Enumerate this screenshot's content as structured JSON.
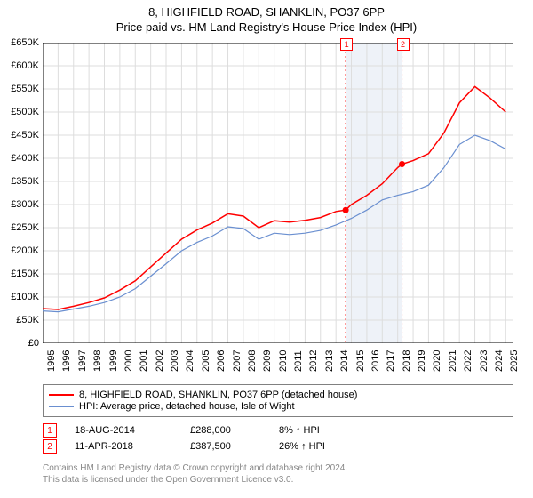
{
  "title": {
    "main": "8, HIGHFIELD ROAD, SHANKLIN, PO37 6PP",
    "sub": "Price paid vs. HM Land Registry's House Price Index (HPI)"
  },
  "chart": {
    "type": "line",
    "background_color": "#ffffff",
    "grid_color": "#dddddd",
    "axis_color": "#000000",
    "shaded_band": {
      "x_start": 2014.63,
      "x_end": 2018.28,
      "color": "#eef2f8"
    },
    "x": {
      "min": 1995,
      "max": 2025.5,
      "ticks": [
        1995,
        1996,
        1997,
        1998,
        1999,
        2000,
        2001,
        2002,
        2003,
        2004,
        2005,
        2006,
        2007,
        2008,
        2009,
        2010,
        2011,
        2012,
        2013,
        2014,
        2015,
        2016,
        2017,
        2018,
        2019,
        2020,
        2021,
        2022,
        2023,
        2024,
        2025
      ]
    },
    "y": {
      "min": 0,
      "max": 650000,
      "ticks": [
        0,
        50000,
        100000,
        150000,
        200000,
        250000,
        300000,
        350000,
        400000,
        450000,
        500000,
        550000,
        600000,
        650000
      ],
      "tick_labels": [
        "£0",
        "£50K",
        "£100K",
        "£150K",
        "£200K",
        "£250K",
        "£300K",
        "£350K",
        "£400K",
        "£450K",
        "£500K",
        "£550K",
        "£600K",
        "£650K"
      ]
    },
    "series": [
      {
        "name": "8, HIGHFIELD ROAD, SHANKLIN, PO37 6PP (detached house)",
        "color": "#ff0000",
        "line_width": 1.5,
        "points": [
          [
            1995,
            75000
          ],
          [
            1996,
            73000
          ],
          [
            1997,
            80000
          ],
          [
            1998,
            88000
          ],
          [
            1999,
            98000
          ],
          [
            2000,
            115000
          ],
          [
            2001,
            135000
          ],
          [
            2002,
            165000
          ],
          [
            2003,
            195000
          ],
          [
            2004,
            225000
          ],
          [
            2005,
            245000
          ],
          [
            2006,
            260000
          ],
          [
            2007,
            280000
          ],
          [
            2008,
            275000
          ],
          [
            2009,
            250000
          ],
          [
            2010,
            265000
          ],
          [
            2011,
            262000
          ],
          [
            2012,
            266000
          ],
          [
            2013,
            272000
          ],
          [
            2014,
            285000
          ],
          [
            2014.63,
            288000
          ],
          [
            2015,
            300000
          ],
          [
            2016,
            320000
          ],
          [
            2017,
            345000
          ],
          [
            2018,
            380000
          ],
          [
            2018.28,
            387500
          ],
          [
            2019,
            395000
          ],
          [
            2020,
            410000
          ],
          [
            2021,
            455000
          ],
          [
            2022,
            520000
          ],
          [
            2023,
            555000
          ],
          [
            2024,
            530000
          ],
          [
            2025,
            500000
          ]
        ]
      },
      {
        "name": "HPI: Average price, detached house, Isle of Wight",
        "color": "#6a8fd0",
        "line_width": 1.2,
        "points": [
          [
            1995,
            70000
          ],
          [
            1996,
            68000
          ],
          [
            1997,
            74000
          ],
          [
            1998,
            80000
          ],
          [
            1999,
            88000
          ],
          [
            2000,
            100000
          ],
          [
            2001,
            118000
          ],
          [
            2002,
            145000
          ],
          [
            2003,
            172000
          ],
          [
            2004,
            200000
          ],
          [
            2005,
            218000
          ],
          [
            2006,
            232000
          ],
          [
            2007,
            252000
          ],
          [
            2008,
            248000
          ],
          [
            2009,
            225000
          ],
          [
            2010,
            238000
          ],
          [
            2011,
            235000
          ],
          [
            2012,
            238000
          ],
          [
            2013,
            244000
          ],
          [
            2014,
            256000
          ],
          [
            2015,
            270000
          ],
          [
            2016,
            288000
          ],
          [
            2017,
            310000
          ],
          [
            2018,
            320000
          ],
          [
            2019,
            328000
          ],
          [
            2020,
            342000
          ],
          [
            2021,
            380000
          ],
          [
            2022,
            430000
          ],
          [
            2023,
            450000
          ],
          [
            2024,
            438000
          ],
          [
            2025,
            420000
          ]
        ]
      }
    ],
    "sale_markers": [
      {
        "label": "1",
        "x": 2014.63,
        "y": 288000,
        "dot_color": "#ff0000",
        "label_top": -5
      },
      {
        "label": "2",
        "x": 2018.28,
        "y": 387500,
        "dot_color": "#ff0000",
        "label_top": -5
      }
    ]
  },
  "legend": {
    "items": [
      {
        "color": "#ff0000",
        "text": "8, HIGHFIELD ROAD, SHANKLIN, PO37 6PP (detached house)"
      },
      {
        "color": "#6a8fd0",
        "text": "HPI: Average price, detached house, Isle of Wight"
      }
    ]
  },
  "sales": [
    {
      "marker": "1",
      "date": "18-AUG-2014",
      "price": "£288,000",
      "hpi": "8% ↑ HPI"
    },
    {
      "marker": "2",
      "date": "11-APR-2018",
      "price": "£387,500",
      "hpi": "26% ↑ HPI"
    }
  ],
  "footer": {
    "line1": "Contains HM Land Registry data © Crown copyright and database right 2024.",
    "line2": "This data is licensed under the Open Government Licence v3.0."
  }
}
